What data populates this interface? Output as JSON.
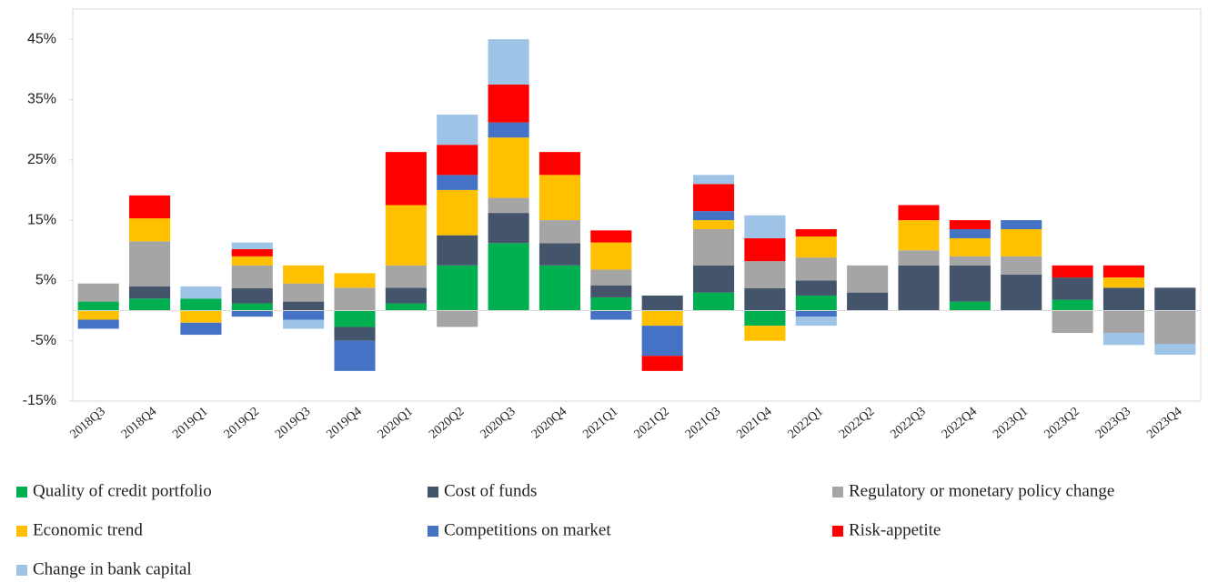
{
  "chart_data": {
    "type": "stacked_bar",
    "categories": [
      "2018Q3",
      "2018Q4",
      "2019Q1",
      "2019Q2",
      "2019Q3",
      "2019Q4",
      "2020Q1",
      "2020Q2",
      "2020Q3",
      "2020Q4",
      "2021Q1",
      "2021Q2",
      "2021Q3",
      "2021Q4",
      "2022Q1",
      "2022Q2",
      "2022Q3",
      "2022Q4",
      "2023Q1",
      "2023Q2",
      "2023Q3",
      "2023Q4"
    ],
    "series": [
      {
        "name": "Quality of credit portfolio",
        "color": "#00b050",
        "values": [
          1.5,
          2,
          2,
          1.2,
          0,
          -2.7,
          1.2,
          7.5,
          11.2,
          7.5,
          2.2,
          0,
          3,
          -2.5,
          2.5,
          0,
          0,
          1.5,
          0,
          1.8,
          0,
          0
        ]
      },
      {
        "name": "Cost of funds",
        "color": "#44546a",
        "values": [
          0,
          2,
          0,
          2.5,
          1.5,
          -2.3,
          2.6,
          5,
          5,
          3.7,
          2,
          2.5,
          4.5,
          3.7,
          2.5,
          3,
          7.5,
          6,
          6,
          3.7,
          3.8,
          3.8
        ]
      },
      {
        "name": "Regulatory or monetary policy change",
        "color": "#a5a5a5",
        "values": [
          3,
          7.5,
          0,
          3.8,
          3,
          3.8,
          3.7,
          -2.7,
          2.5,
          3.8,
          2.6,
          0,
          6,
          4.5,
          3.8,
          4.5,
          2.5,
          1.5,
          3,
          -3.7,
          -3.7,
          -5.5
        ]
      },
      {
        "name": "Economic trend",
        "color": "#ffc000",
        "values": [
          -1.5,
          3.8,
          -2,
          1.5,
          3,
          2.4,
          10,
          7.5,
          10,
          7.5,
          4.5,
          -2.5,
          1.5,
          -2.5,
          3.5,
          0,
          5,
          3,
          4.5,
          0,
          1.7,
          0
        ]
      },
      {
        "name": "Competitions on market",
        "color": "#4472c4",
        "values": [
          -1.5,
          0,
          -2,
          -1,
          -1.5,
          -5,
          0,
          2.5,
          2.5,
          0,
          -1.5,
          -5,
          1.5,
          0,
          -1,
          0,
          0,
          1.5,
          1.5,
          0,
          0,
          0
        ]
      },
      {
        "name": "Risk-appetite",
        "color": "#ff0000",
        "values": [
          0,
          3.8,
          0,
          1.2,
          0,
          0,
          8.8,
          5,
          6.3,
          3.8,
          2,
          -2.5,
          4.5,
          3.8,
          1.2,
          0,
          2.5,
          1.5,
          0,
          2,
          2,
          0
        ]
      },
      {
        "name": "Change in bank capital",
        "color": "#9dc3e6",
        "values": [
          0,
          0,
          2,
          1.1,
          -1.5,
          0,
          0,
          5,
          7.5,
          0,
          0,
          0,
          1.5,
          3.8,
          -1.5,
          0,
          0,
          0,
          0,
          0,
          -2,
          -1.8
        ]
      }
    ],
    "ylim": [
      -15,
      50
    ],
    "yticks": [
      {
        "value": -15,
        "label": "-15%"
      },
      {
        "value": -5,
        "label": "-5%"
      },
      {
        "value": 5,
        "label": "5%"
      },
      {
        "value": 15,
        "label": "15%"
      },
      {
        "value": 25,
        "label": "25%"
      },
      {
        "value": 35,
        "label": "35%"
      },
      {
        "value": 45,
        "label": "45%"
      }
    ]
  }
}
